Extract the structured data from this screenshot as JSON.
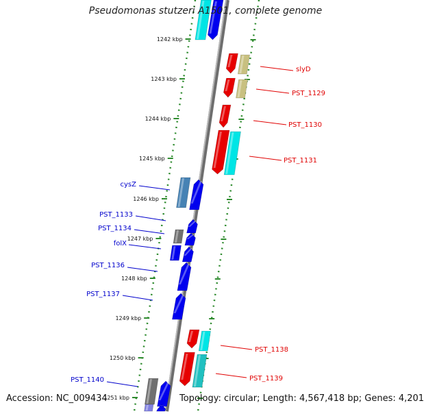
{
  "title": "Pseudomonas stutzeri A1501, complete genome",
  "footer": {
    "accession": "Accession: NC_009434",
    "topology": "Topology: circular; Length: 4,567,418 bp; Genes: 4,201"
  },
  "colors": {
    "forward_label": "#e00000",
    "reverse_label": "#0000cc",
    "axis": "#888888",
    "dotted_guide": "#2e8b2e"
  },
  "scale_labels": [
    "1242 kbp",
    "1243 kbp",
    "1244 kbp",
    "1245 kbp",
    "1246 kbp",
    "1247 kbp",
    "1248 kbp",
    "1249 kbp",
    "1250 kbp",
    "1251 kbp"
  ],
  "genes": [
    {
      "name": "slyD",
      "strand": "forward"
    },
    {
      "name": "PST_1129",
      "strand": "forward"
    },
    {
      "name": "PST_1130",
      "strand": "forward"
    },
    {
      "name": "PST_1131",
      "strand": "forward"
    },
    {
      "name": "cysZ",
      "strand": "reverse"
    },
    {
      "name": "PST_1133",
      "strand": "reverse"
    },
    {
      "name": "PST_1134",
      "strand": "reverse"
    },
    {
      "name": "folX",
      "strand": "reverse"
    },
    {
      "name": "PST_1136",
      "strand": "reverse"
    },
    {
      "name": "PST_1137",
      "strand": "reverse"
    },
    {
      "name": "PST_1138",
      "strand": "forward"
    },
    {
      "name": "PST_1139",
      "strand": "forward"
    },
    {
      "name": "PST_1140",
      "strand": "reverse"
    }
  ]
}
